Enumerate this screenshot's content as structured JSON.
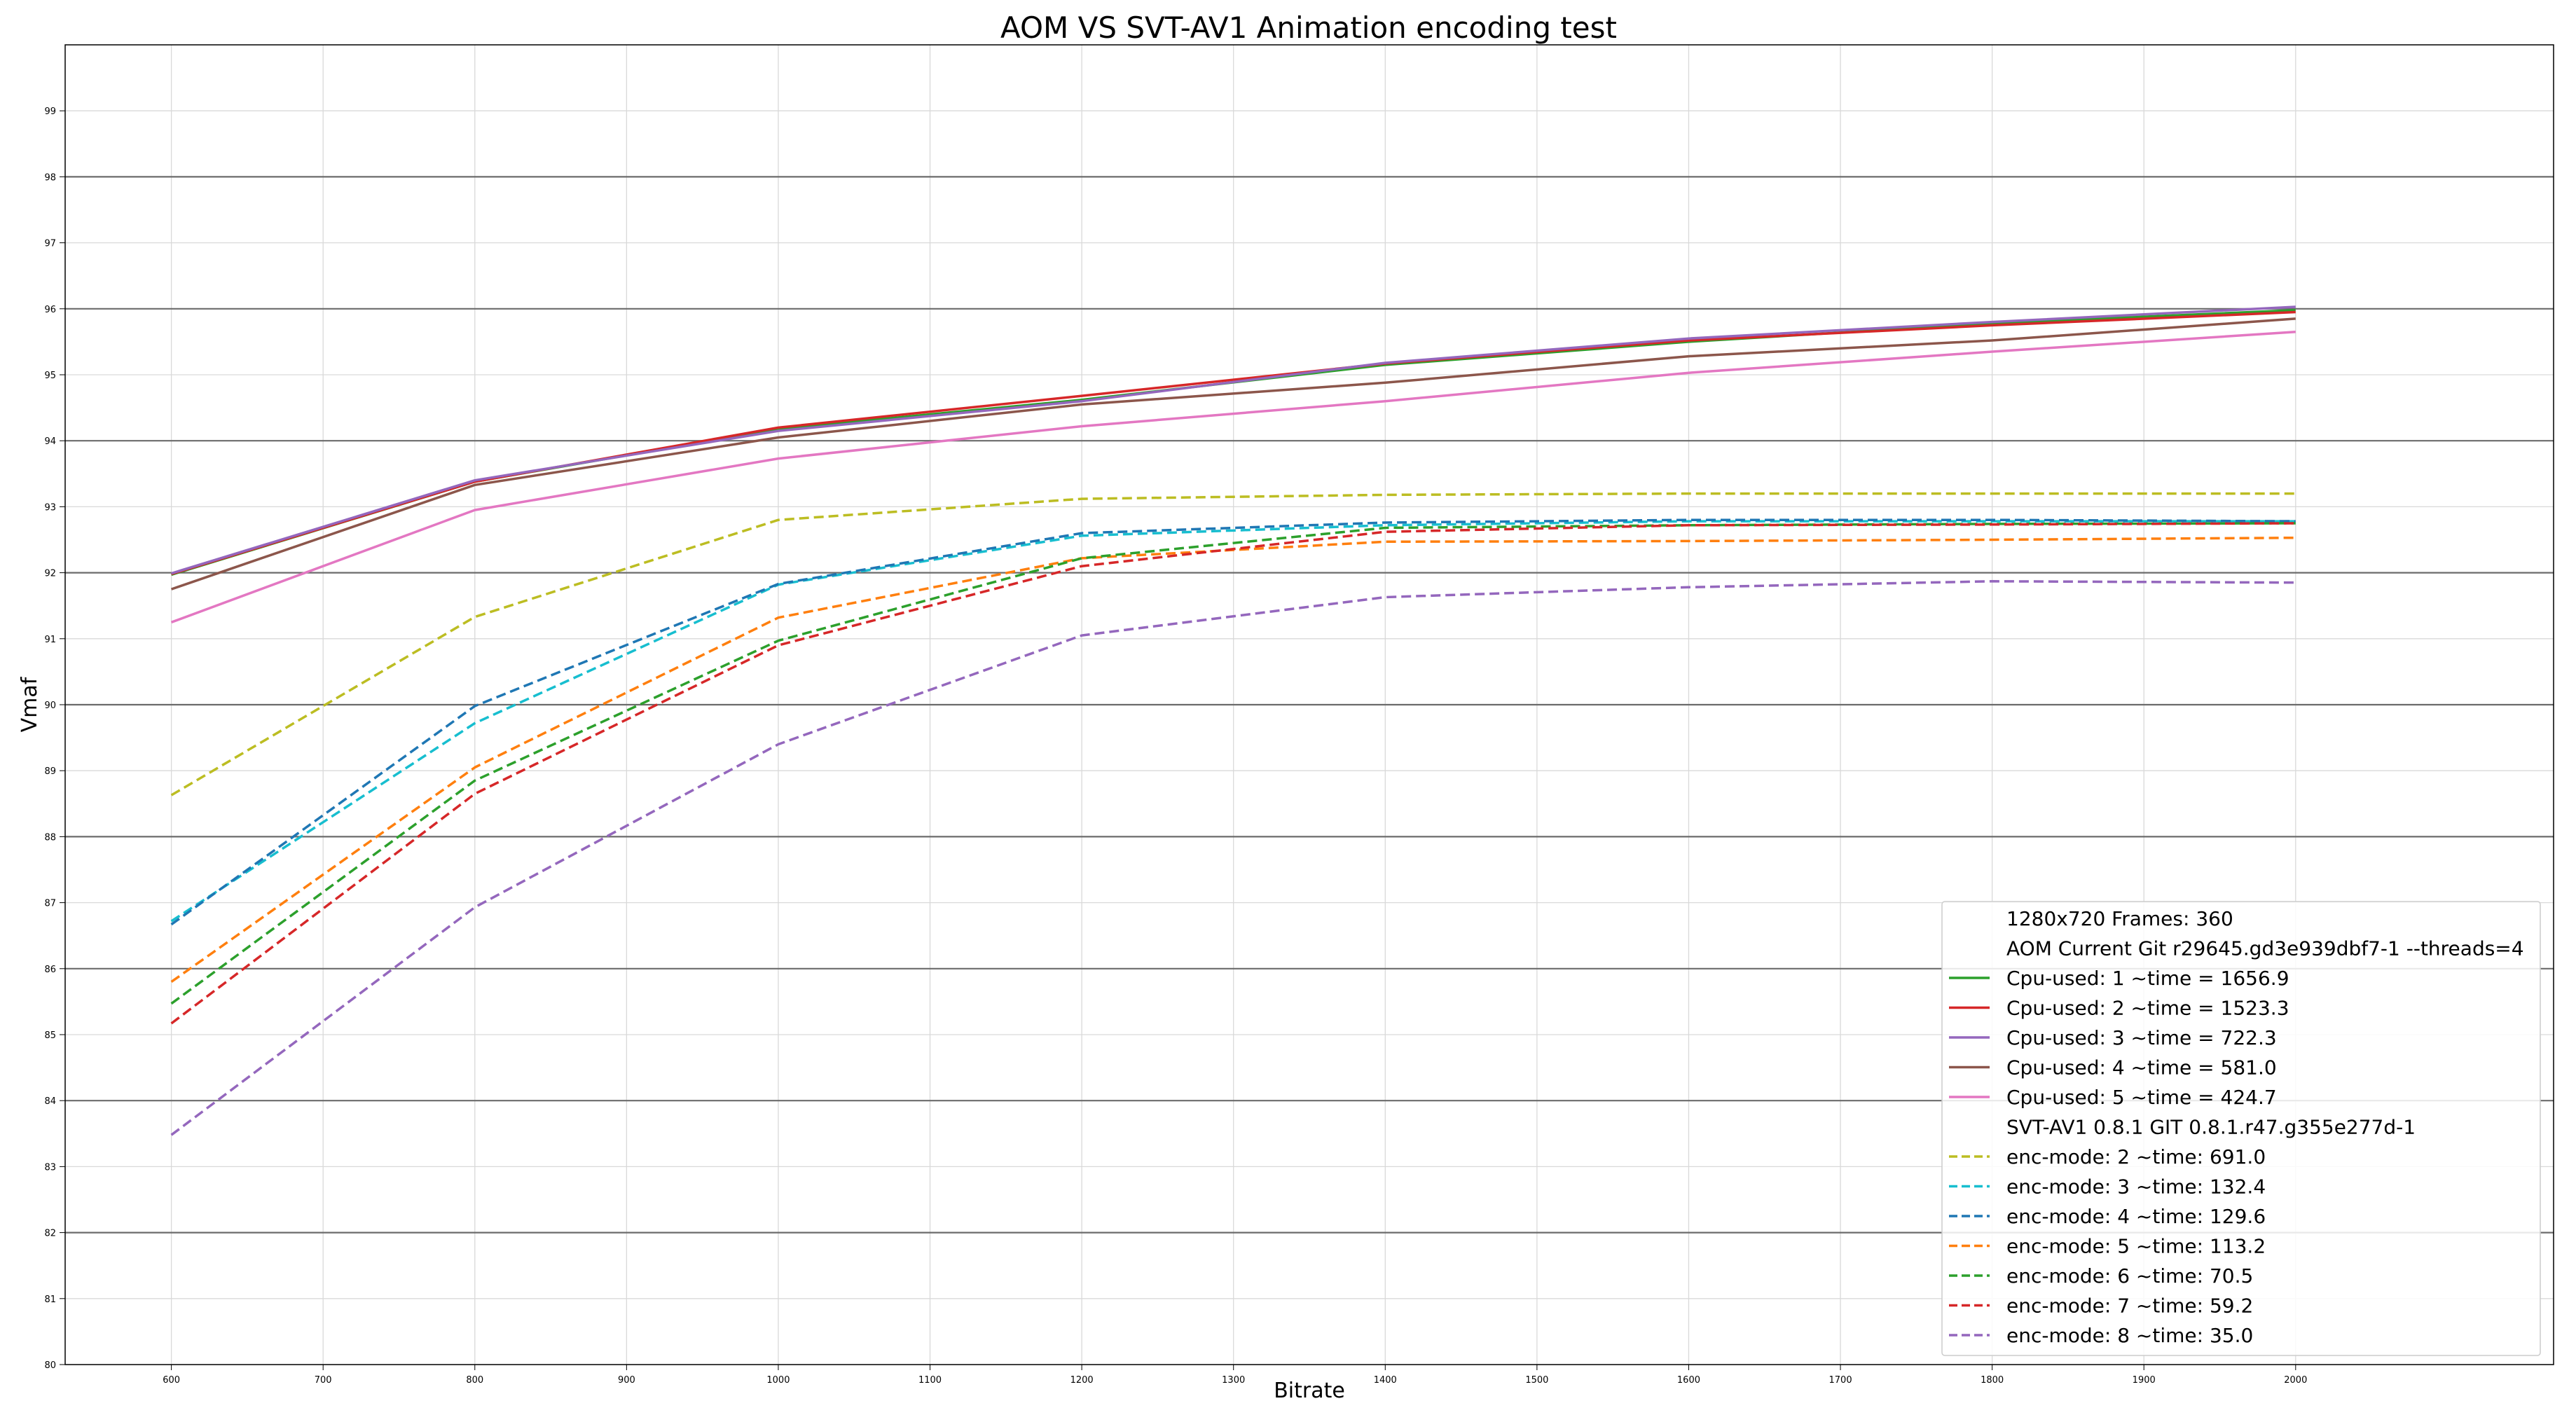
{
  "chart_data": {
    "type": "line",
    "title": "AOM VS SVT-AV1 Animation encoding test",
    "xlabel": "Bitrate",
    "ylabel": "Vmaf",
    "xlim": [
      530,
      2170
    ],
    "ylim": [
      80,
      100
    ],
    "x_ticks": [
      600,
      700,
      800,
      900,
      1000,
      1100,
      1200,
      1300,
      1400,
      1500,
      1600,
      1700,
      1800,
      1900,
      2000
    ],
    "y_ticks": [
      80,
      81,
      82,
      83,
      84,
      85,
      86,
      87,
      88,
      89,
      90,
      91,
      92,
      93,
      94,
      95,
      96,
      97,
      98,
      99
    ],
    "grid": true,
    "legend_position": "lower-right",
    "legend_headers": [
      "1280x720 Frames: 360",
      "AOM Current Git r29645.gd3e939dbf7-1 --threads=4",
      "SVT-AV1 0.8.1 GIT 0.8.1.r47.g355e277d-1"
    ],
    "x": [
      600,
      800,
      1000,
      1200,
      1400,
      1600,
      1800,
      2000
    ],
    "series": [
      {
        "name": "Cpu-used: 1 ~time = 1656.9",
        "color": "#2ca02c",
        "dash": "solid",
        "values": [
          91.97,
          93.38,
          94.18,
          94.62,
          95.15,
          95.5,
          95.78,
          95.98
        ]
      },
      {
        "name": "Cpu-used: 2 ~time = 1523.3",
        "color": "#d62728",
        "dash": "solid",
        "values": [
          91.98,
          93.38,
          94.2,
          94.68,
          95.17,
          95.52,
          95.75,
          95.95
        ]
      },
      {
        "name": "Cpu-used: 3 ~time = 722.3",
        "color": "#9467bd",
        "dash": "solid",
        "values": [
          91.99,
          93.4,
          94.15,
          94.6,
          95.18,
          95.55,
          95.8,
          96.03
        ]
      },
      {
        "name": "Cpu-used: 4 ~time = 581.0",
        "color": "#8c564b",
        "dash": "solid",
        "values": [
          91.75,
          93.33,
          94.05,
          94.55,
          94.88,
          95.28,
          95.52,
          95.85
        ]
      },
      {
        "name": "Cpu-used: 5 ~time = 424.7",
        "color": "#e377c2",
        "dash": "solid",
        "values": [
          91.25,
          92.95,
          93.73,
          94.22,
          94.6,
          95.03,
          95.35,
          95.65
        ]
      },
      {
        "name": "enc-mode: 2 ~time: 691.0",
        "color": "#bcbd22",
        "dash": "dashed",
        "values": [
          88.63,
          91.33,
          92.8,
          93.12,
          93.18,
          93.2,
          93.2,
          93.2
        ]
      },
      {
        "name": "enc-mode: 3 ~time: 132.4",
        "color": "#17becf",
        "dash": "dashed",
        "values": [
          86.72,
          89.72,
          91.82,
          92.56,
          92.72,
          92.78,
          92.78,
          92.78
        ]
      },
      {
        "name": "enc-mode: 4 ~time: 129.6",
        "color": "#1f77b4",
        "dash": "dashed",
        "values": [
          86.67,
          89.98,
          91.83,
          92.6,
          92.76,
          92.8,
          92.8,
          92.78
        ]
      },
      {
        "name": "enc-mode: 5 ~time: 113.2",
        "color": "#ff7f0e",
        "dash": "dashed",
        "values": [
          85.8,
          89.05,
          91.32,
          92.22,
          92.47,
          92.48,
          92.5,
          92.53
        ]
      },
      {
        "name": "enc-mode: 6 ~time: 70.5",
        "color": "#2ca02c",
        "dash": "dashed",
        "values": [
          85.47,
          88.85,
          90.97,
          92.22,
          92.68,
          92.72,
          92.74,
          92.75
        ]
      },
      {
        "name": "enc-mode: 7 ~time: 59.2",
        "color": "#d62728",
        "dash": "dashed",
        "values": [
          85.17,
          88.65,
          90.9,
          92.1,
          92.62,
          92.72,
          92.73,
          92.75
        ]
      },
      {
        "name": "enc-mode: 8 ~time: 35.0",
        "color": "#9467bd",
        "dash": "dashed",
        "values": [
          83.48,
          86.93,
          89.4,
          91.05,
          91.63,
          91.78,
          91.87,
          91.85
        ]
      }
    ]
  }
}
